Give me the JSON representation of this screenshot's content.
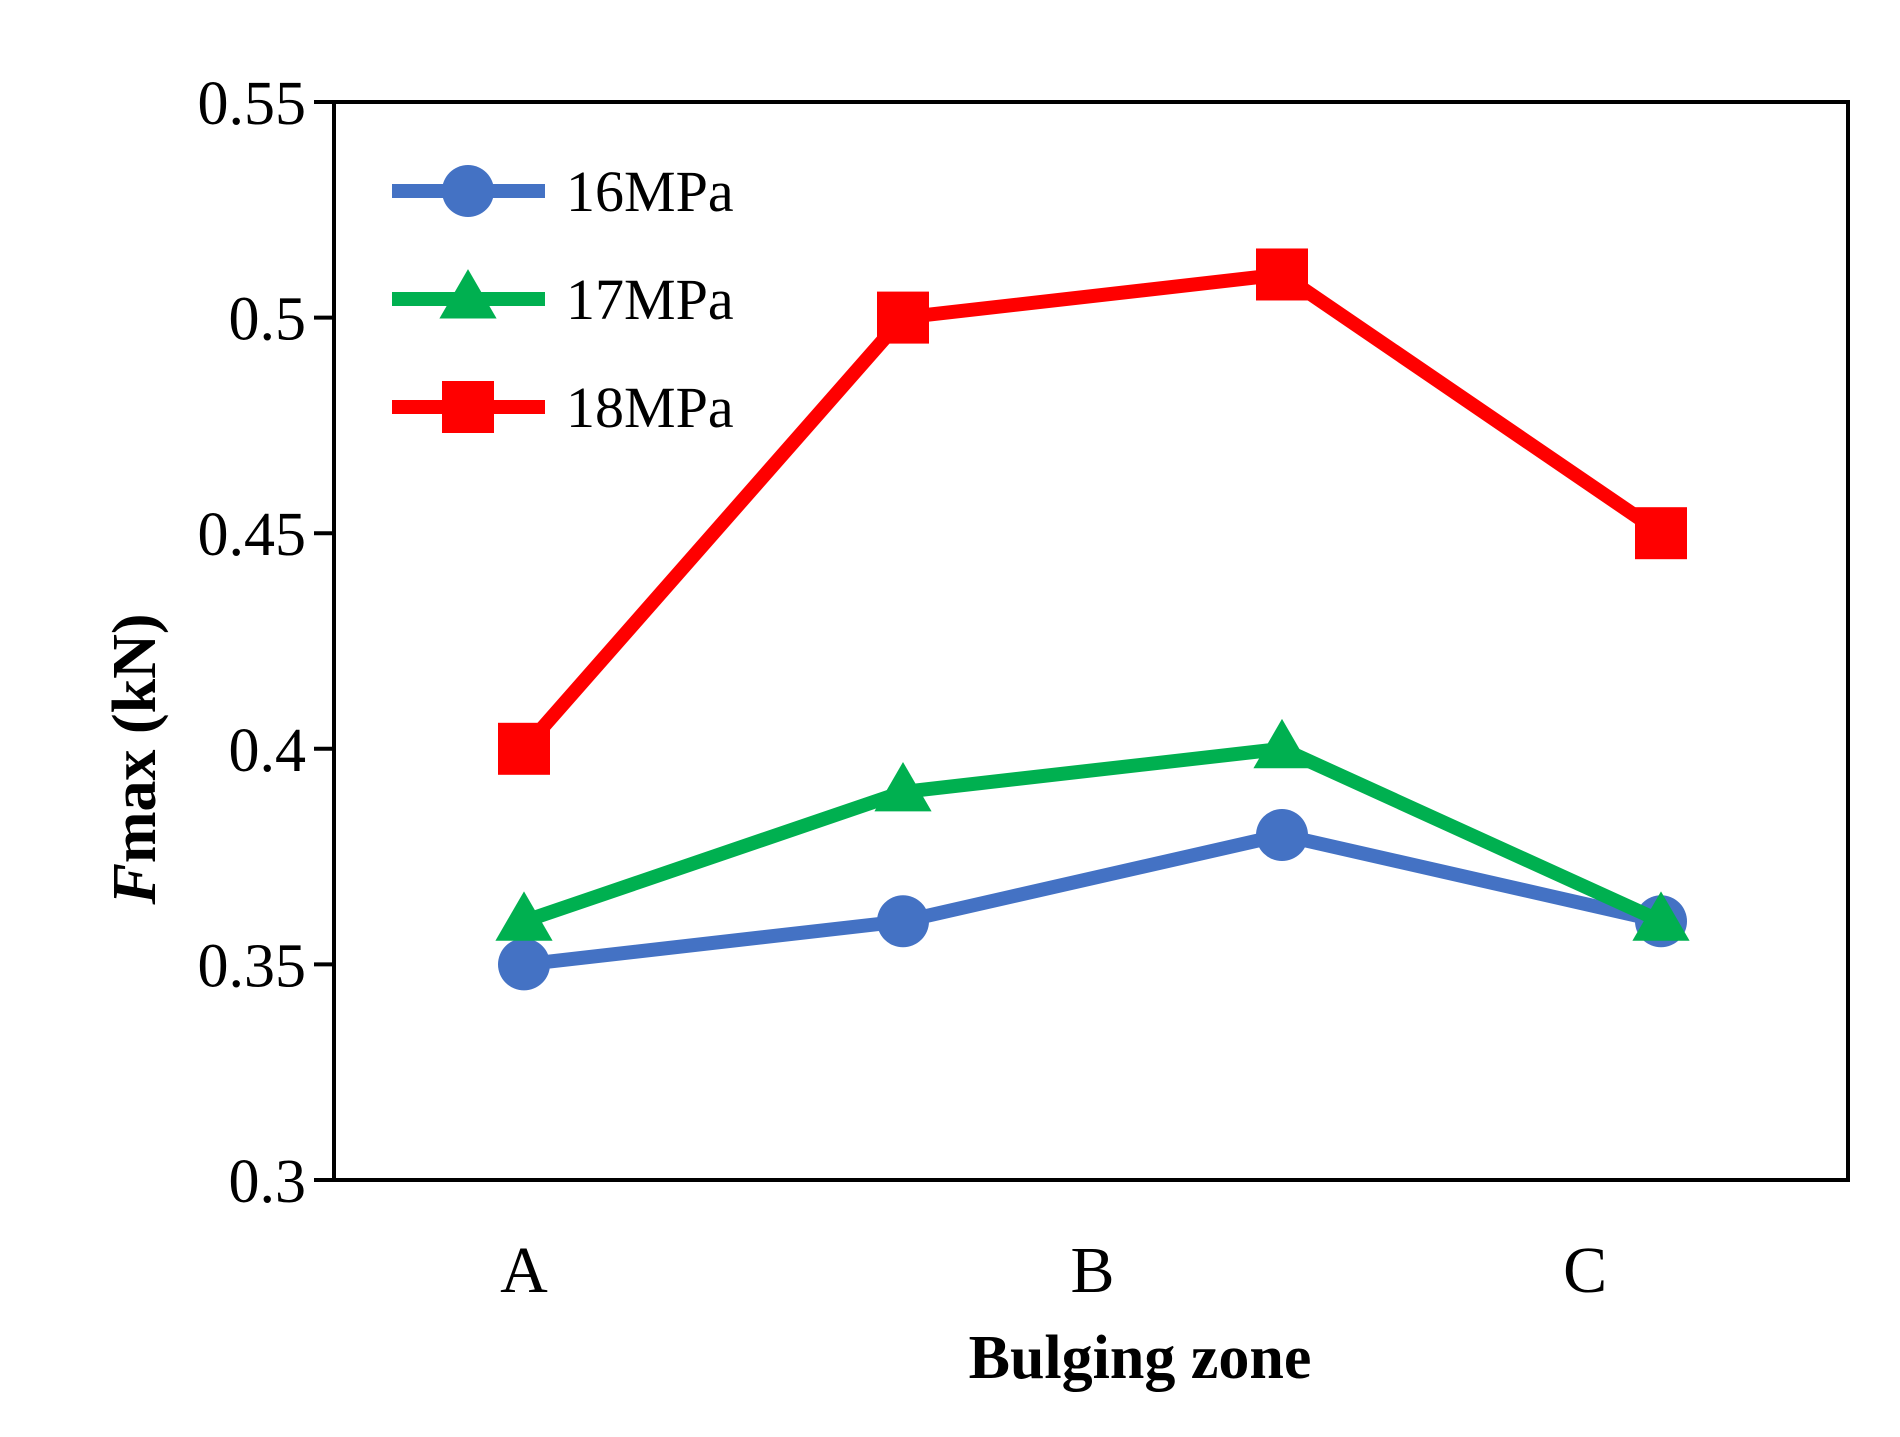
{
  "chart_data": {
    "type": "line",
    "title": "",
    "xlabel": "Bulging zone",
    "ylabel": {
      "italic_part": "F",
      "rest": "max (kN)"
    },
    "ylim": [
      0.3,
      0.55
    ],
    "yticks": [
      "0.3",
      "0.35",
      "0.4",
      "0.45",
      "0.5",
      "0.55"
    ],
    "ytick_values": [
      0.3,
      0.35,
      0.4,
      0.45,
      0.5,
      0.55
    ],
    "x_points": 4,
    "category_labels": [
      {
        "label": "A",
        "at_point": 0
      },
      {
        "label": "B",
        "at_point": 1.5
      },
      {
        "label": "C",
        "at_point": 2.8
      }
    ],
    "grid": false,
    "legend_position": "top-left",
    "series": [
      {
        "name": "16MPa",
        "color": "#4472C4",
        "marker": "circle",
        "values": [
          0.35,
          0.36,
          0.38,
          0.36
        ]
      },
      {
        "name": "17MPa",
        "color": "#00B050",
        "marker": "triangle",
        "values": [
          0.36,
          0.39,
          0.4,
          0.36
        ]
      },
      {
        "name": "18MPa",
        "color": "#FF0000",
        "marker": "square",
        "values": [
          0.4,
          0.5,
          0.51,
          0.45
        ]
      }
    ]
  }
}
